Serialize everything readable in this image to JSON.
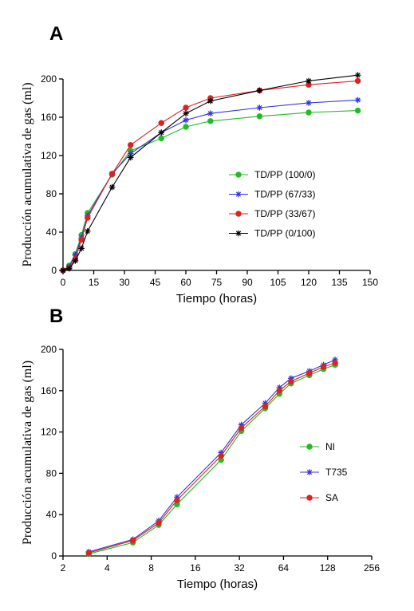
{
  "chart_data": [
    {
      "panel": "A",
      "type": "line",
      "xlabel": "Tiempo (horas)",
      "ylabel": "Producción acumulativa de gas (ml)",
      "xlim": [
        0,
        150
      ],
      "ylim": [
        0,
        210
      ],
      "x_ticks": [
        0,
        15,
        30,
        45,
        60,
        75,
        90,
        105,
        120,
        135,
        150
      ],
      "y_ticks": [
        0,
        40,
        80,
        120,
        160,
        200
      ],
      "x_scale": "linear",
      "grid": false,
      "legend_position": "center-right",
      "x": [
        0,
        3,
        6,
        9,
        12,
        24,
        33,
        48,
        60,
        72,
        96,
        120,
        144
      ],
      "series": [
        {
          "name": "TD/PP (100/0)",
          "color": "#22bb22",
          "marker": "circle",
          "values": [
            0,
            5,
            17,
            37,
            60,
            100,
            125,
            138,
            150,
            156,
            161,
            165,
            167
          ]
        },
        {
          "name": "TD/PP (67/33)",
          "color": "#3333dd",
          "marker": "star",
          "values": [
            0,
            4,
            16,
            34,
            57,
            101,
            122,
            144,
            157,
            164,
            170,
            175,
            178
          ]
        },
        {
          "name": "TD/PP (33/67)",
          "color": "#dd2222",
          "marker": "circle",
          "values": [
            0,
            3,
            12,
            32,
            55,
            101,
            131,
            154,
            170,
            180,
            188,
            194,
            198
          ]
        },
        {
          "name": "TD/PP (0/100)",
          "color": "#000000",
          "marker": "star",
          "values": [
            0,
            2,
            10,
            23,
            41,
            87,
            118,
            144,
            164,
            177,
            188,
            198,
            204
          ]
        }
      ]
    },
    {
      "panel": "B",
      "type": "line",
      "xlabel": "Tiempo (horas)",
      "ylabel": "Producción acumulativa de gas (ml)",
      "x_scale": "log2",
      "xlim": [
        2,
        256
      ],
      "ylim": [
        0,
        200
      ],
      "x_ticks": [
        2,
        4,
        8,
        16,
        32,
        64,
        128,
        256
      ],
      "y_ticks": [
        0,
        40,
        80,
        120,
        160,
        200
      ],
      "grid": false,
      "legend_position": "center-right",
      "x": [
        3,
        6,
        9,
        12,
        24,
        33,
        48,
        60,
        72,
        96,
        120,
        144
      ],
      "series": [
        {
          "name": "NI",
          "color": "#22bb22",
          "marker": "circle",
          "values": [
            2,
            13,
            30,
            50,
            93,
            121,
            143,
            157,
            167,
            175,
            181,
            185
          ]
        },
        {
          "name": "T735",
          "color": "#3333dd",
          "marker": "star",
          "values": [
            4,
            16,
            34,
            57,
            100,
            127,
            148,
            163,
            172,
            179,
            185,
            190
          ]
        },
        {
          "name": "SA",
          "color": "#dd2222",
          "marker": "circle",
          "values": [
            3,
            15,
            32,
            54,
            97,
            124,
            145,
            160,
            169,
            177,
            183,
            187
          ]
        }
      ]
    }
  ]
}
